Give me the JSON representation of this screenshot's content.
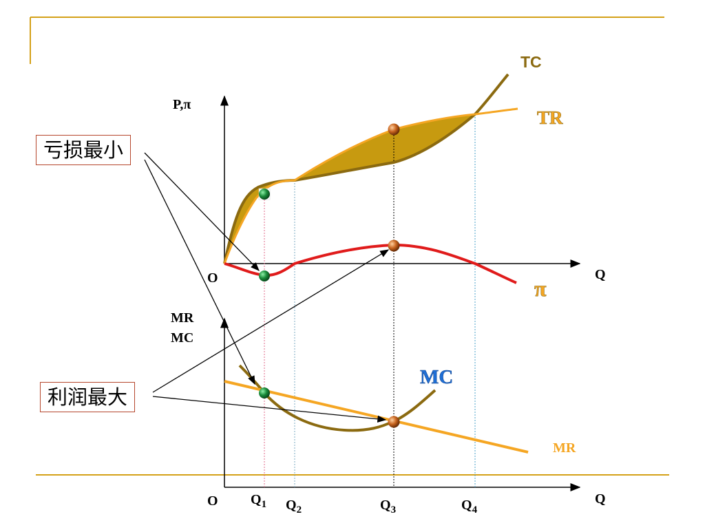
{
  "labels": {
    "tc": "TC",
    "tr": "TR",
    "pi": "π",
    "mc": "MC",
    "mr": "MR",
    "upper_y_axis": "P,π",
    "lower_y_axis_line1": "MR",
    "lower_y_axis_line2": "MC",
    "upper_origin": "O",
    "lower_origin": "O",
    "upper_x_axis": "Q",
    "lower_x_axis": "Q",
    "q_base": "Q",
    "q1_sub": "1",
    "q2_sub": "2",
    "q3_sub": "3",
    "q4_sub": "4"
  },
  "callouts": {
    "loss_min": "亏损最小",
    "profit_max": "利润最大"
  },
  "colors": {
    "frame_gold": "#d4a017",
    "tc": "#8b6a10",
    "tr": "#f5a623",
    "pi": "#e01b1b",
    "mc": "#8b6a10",
    "mr": "#f5a623",
    "shade": "#c79a10",
    "green_point": "#1a8c3a",
    "orange_point": "#c8641e",
    "mc_label": "#1f6fd6"
  }
}
